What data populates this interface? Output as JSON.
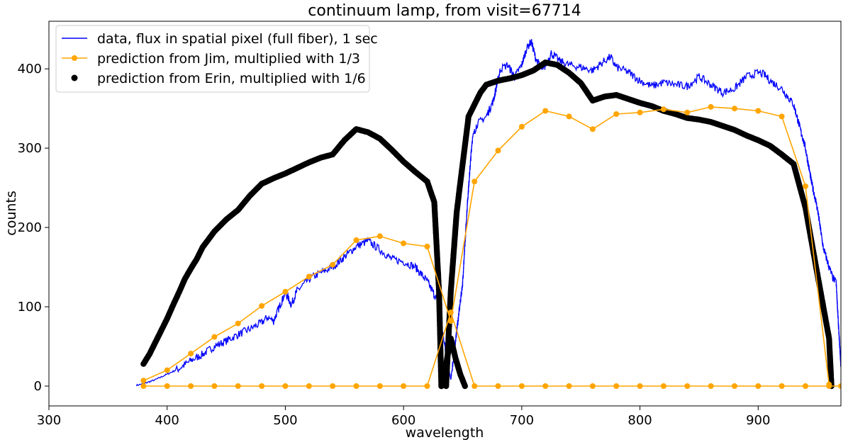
{
  "chart_data": {
    "type": "line",
    "title": "continuum lamp, from visit=67714",
    "xlabel": "wavelength",
    "ylabel": "counts",
    "xlim": [
      300,
      970
    ],
    "ylim": [
      -25,
      460
    ],
    "xticks": [
      300,
      400,
      500,
      600,
      700,
      800,
      900
    ],
    "yticks": [
      0,
      100,
      200,
      300,
      400
    ],
    "grid": false,
    "legend_position": "upper-left",
    "series": [
      {
        "name": "data, flux in spatial pixel (full fiber), 1 sec",
        "kind": "line",
        "color": "#0000ff",
        "x": [
          374,
          380,
          390,
          400,
          410,
          420,
          430,
          440,
          450,
          460,
          470,
          480,
          485,
          490,
          500,
          505,
          510,
          520,
          530,
          540,
          550,
          560,
          570,
          580,
          590,
          600,
          610,
          620,
          628,
          633,
          636,
          640,
          645,
          650,
          654,
          658,
          662,
          670,
          676,
          682,
          688,
          694,
          700,
          704,
          708,
          712,
          718,
          725,
          732,
          740,
          750,
          760,
          770,
          775,
          780,
          790,
          800,
          810,
          820,
          830,
          840,
          850,
          860,
          870,
          880,
          890,
          900,
          905,
          910,
          920,
          930,
          940,
          945,
          950,
          955,
          960,
          963,
          966,
          968,
          970
        ],
        "y": [
          1,
          3,
          8,
          15,
          22,
          32,
          40,
          50,
          57,
          65,
          72,
          80,
          87,
          82,
          118,
          103,
          120,
          135,
          143,
          150,
          163,
          176,
          183,
          172,
          160,
          157,
          150,
          132,
          110,
          70,
          40,
          8,
          70,
          130,
          230,
          310,
          330,
          340,
          360,
          400,
          405,
          390,
          405,
          425,
          435,
          412,
          398,
          420,
          410,
          405,
          402,
          398,
          410,
          415,
          402,
          396,
          385,
          378,
          383,
          380,
          378,
          390,
          380,
          370,
          375,
          390,
          395,
          393,
          385,
          375,
          355,
          300,
          258,
          225,
          175,
          150,
          137,
          130,
          75,
          25
        ]
      },
      {
        "name": "prediction from Jim, multiplied with 1/3",
        "kind": "line-marker",
        "color": "#ffa500",
        "x": [
          380,
          400,
          420,
          440,
          460,
          480,
          500,
          520,
          540,
          560,
          580,
          600,
          620,
          640,
          660,
          680,
          700,
          720,
          740,
          760,
          780,
          800,
          820,
          840,
          860,
          880,
          900,
          920,
          940,
          960
        ],
        "y": [
          7,
          20,
          41,
          62,
          79,
          101,
          119,
          138,
          153,
          184,
          189,
          180,
          176,
          82,
          258,
          297,
          327,
          347,
          340,
          324,
          343,
          345,
          349,
          345,
          352,
          350,
          347,
          340,
          252,
          2
        ]
      },
      {
        "name": "",
        "kind": "line-marker",
        "color": "#ffa500",
        "x": [
          380,
          400,
          420,
          440,
          460,
          480,
          500,
          520,
          540,
          560,
          580,
          600,
          620,
          640,
          660,
          680,
          700,
          720,
          740,
          760,
          780,
          800,
          820,
          840,
          860,
          880,
          900,
          920,
          940,
          960,
          970
        ],
        "y": [
          0,
          0,
          0,
          0,
          0,
          0,
          0,
          0,
          0,
          0,
          0,
          0,
          0,
          93,
          0,
          0,
          0,
          0,
          0,
          0,
          0,
          0,
          0,
          0,
          0,
          0,
          0,
          0,
          0,
          0,
          0
        ]
      },
      {
        "name": "prediction from Erin, multiplied with 1/6",
        "kind": "scatter-dense",
        "color": "#000000",
        "x": [
          380,
          385,
          390,
          395,
          400,
          405,
          410,
          415,
          420,
          425,
          430,
          440,
          450,
          460,
          470,
          480,
          490,
          500,
          510,
          520,
          530,
          540,
          550,
          560,
          570,
          580,
          590,
          600,
          610,
          620,
          626,
          630,
          632
        ],
        "y": [
          28,
          40,
          55,
          70,
          85,
          102,
          118,
          135,
          148,
          160,
          175,
          195,
          210,
          222,
          240,
          255,
          262,
          268,
          275,
          282,
          288,
          292,
          310,
          324,
          320,
          312,
          298,
          283,
          270,
          258,
          232,
          120,
          0
        ]
      },
      {
        "name": "",
        "kind": "scatter-dense",
        "color": "#000000",
        "x": [
          632,
          636,
          640,
          644,
          648,
          652
        ],
        "y": [
          0,
          28,
          60,
          35,
          15,
          0
        ]
      },
      {
        "name": "",
        "kind": "scatter-dense",
        "color": "#000000",
        "x": [
          636,
          640,
          645,
          650,
          655,
          660,
          665,
          670,
          680,
          690,
          700,
          710,
          720,
          730,
          740,
          750,
          760,
          770,
          780,
          790,
          800,
          810,
          820,
          830,
          840,
          850,
          860,
          870,
          880,
          890,
          900,
          910,
          920,
          930,
          940,
          950,
          960,
          962
        ],
        "y": [
          0,
          120,
          220,
          280,
          340,
          355,
          370,
          380,
          385,
          388,
          392,
          398,
          408,
          405,
          395,
          382,
          360,
          365,
          367,
          362,
          357,
          353,
          347,
          343,
          338,
          336,
          333,
          328,
          323,
          316,
          310,
          303,
          292,
          280,
          225,
          142,
          60,
          0
        ]
      }
    ]
  }
}
